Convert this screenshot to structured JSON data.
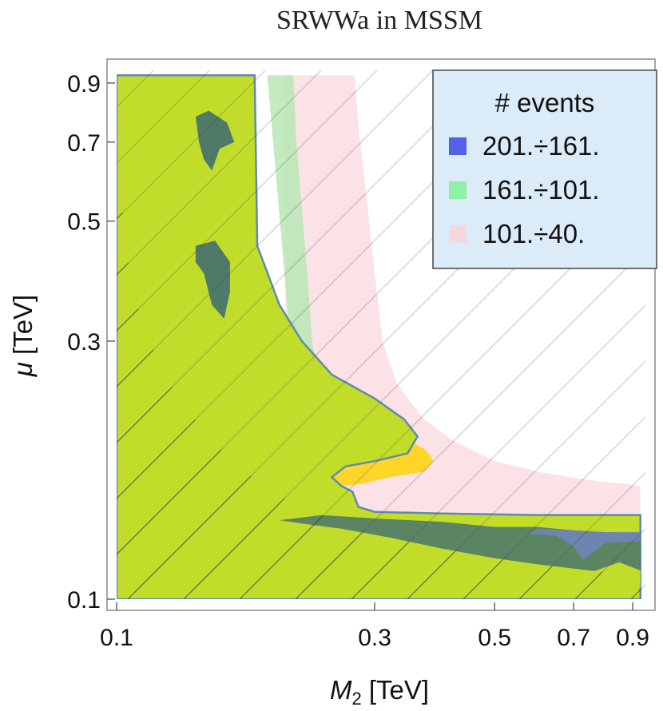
{
  "chart_data": {
    "type": "area",
    "title": "SRWWa in MSSM",
    "xlabel": {
      "var": "M",
      "sub": "2",
      "unit": " [TeV]"
    },
    "ylabel": {
      "var": "μ",
      "unit": " [TeV]"
    },
    "x_scale": "log",
    "y_scale": "log",
    "xlim": [
      0.1,
      0.95
    ],
    "ylim": [
      0.1,
      0.95
    ],
    "x_ticks": [
      {
        "value": 0.1,
        "label": "0.1"
      },
      {
        "value": 0.3,
        "label": "0.3"
      },
      {
        "value": 0.5,
        "label": "0.5"
      },
      {
        "value": 0.7,
        "label": "0.7"
      },
      {
        "value": 0.9,
        "label": "0.9"
      }
    ],
    "y_ticks": [
      {
        "value": 0.1,
        "label": "0.1"
      },
      {
        "value": 0.3,
        "label": "0.3"
      },
      {
        "value": 0.5,
        "label": "0.5"
      },
      {
        "value": 0.7,
        "label": "0.7"
      },
      {
        "value": 0.9,
        "label": "0.9"
      }
    ],
    "legend": {
      "title": "# events",
      "position": "top-right",
      "entries": [
        {
          "label": "201.÷161.",
          "color": "#5560e8"
        },
        {
          "label": "161.÷101.",
          "color": "#8ff0a8"
        },
        {
          "label": "101.÷40.",
          "color": "#f4d8de"
        }
      ]
    },
    "regions": [
      {
        "name": "excluded-region",
        "color": "#ff8000",
        "hatched": true,
        "points": [
          [
            0.1,
            0.1
          ],
          [
            0.1,
            0.66
          ],
          [
            0.105,
            0.42
          ],
          [
            0.11,
            0.34
          ],
          [
            0.12,
            0.27
          ],
          [
            0.13,
            0.235
          ],
          [
            0.145,
            0.205
          ],
          [
            0.165,
            0.178
          ],
          [
            0.19,
            0.16
          ],
          [
            0.22,
            0.147
          ],
          [
            0.26,
            0.138
          ],
          [
            0.32,
            0.13
          ],
          [
            0.4,
            0.124
          ],
          [
            0.5,
            0.119
          ],
          [
            0.6,
            0.116
          ],
          [
            0.75,
            0.113
          ],
          [
            0.93,
            0.111
          ],
          [
            0.93,
            0.1
          ]
        ]
      },
      {
        "name": "pink-band",
        "color": "#fadde2",
        "points": [
          [
            0.205,
            0.93
          ],
          [
            0.275,
            0.93
          ],
          [
            0.28,
            0.75
          ],
          [
            0.29,
            0.55
          ],
          [
            0.3,
            0.4
          ],
          [
            0.31,
            0.3
          ],
          [
            0.33,
            0.25
          ],
          [
            0.37,
            0.215
          ],
          [
            0.42,
            0.196
          ],
          [
            0.5,
            0.18
          ],
          [
            0.6,
            0.172
          ],
          [
            0.75,
            0.166
          ],
          [
            0.93,
            0.162
          ],
          [
            0.93,
            0.125
          ],
          [
            0.6,
            0.125
          ],
          [
            0.4,
            0.128
          ],
          [
            0.3,
            0.134
          ],
          [
            0.25,
            0.14
          ],
          [
            0.22,
            0.2
          ],
          [
            0.205,
            0.3
          ]
        ]
      },
      {
        "name": "light-green-band",
        "color": "#b9e8b4",
        "points": [
          [
            0.19,
            0.93
          ],
          [
            0.212,
            0.93
          ],
          [
            0.215,
            0.7
          ],
          [
            0.225,
            0.4
          ],
          [
            0.23,
            0.3
          ],
          [
            0.235,
            0.26
          ],
          [
            0.26,
            0.21
          ],
          [
            0.3,
            0.19
          ],
          [
            0.25,
            0.165
          ],
          [
            0.28,
            0.145
          ],
          [
            0.4,
            0.143
          ],
          [
            0.6,
            0.142
          ],
          [
            0.93,
            0.142
          ],
          [
            0.93,
            0.125
          ],
          [
            0.5,
            0.127
          ],
          [
            0.3,
            0.134
          ],
          [
            0.22,
            0.17
          ]
        ]
      },
      {
        "name": "yellow-region",
        "color": "#ffd52a",
        "points": [
          [
            0.1,
            0.93
          ],
          [
            0.127,
            0.93
          ],
          [
            0.12,
            0.8
          ],
          [
            0.118,
            0.62
          ],
          [
            0.122,
            0.5
          ],
          [
            0.13,
            0.4
          ],
          [
            0.145,
            0.3
          ],
          [
            0.165,
            0.27
          ],
          [
            0.2,
            0.25
          ],
          [
            0.23,
            0.23
          ],
          [
            0.26,
            0.215
          ],
          [
            0.3,
            0.205
          ],
          [
            0.35,
            0.196
          ],
          [
            0.375,
            0.188
          ],
          [
            0.385,
            0.18
          ],
          [
            0.37,
            0.172
          ],
          [
            0.32,
            0.168
          ],
          [
            0.28,
            0.163
          ],
          [
            0.255,
            0.162
          ],
          [
            0.25,
            0.158
          ],
          [
            0.27,
            0.152
          ],
          [
            0.26,
            0.146
          ],
          [
            0.22,
            0.15
          ],
          [
            0.18,
            0.16
          ],
          [
            0.15,
            0.17
          ],
          [
            0.12,
            0.25
          ],
          [
            0.105,
            0.45
          ]
        ]
      },
      {
        "name": "green-region",
        "color": "#c2dc2a",
        "points": [
          [
            0.1,
            0.93
          ],
          [
            0.115,
            0.93
          ],
          [
            0.112,
            0.75
          ],
          [
            0.12,
            0.55
          ],
          [
            0.125,
            0.42
          ],
          [
            0.13,
            0.36
          ],
          [
            0.135,
            0.32
          ],
          [
            0.14,
            0.28
          ],
          [
            0.15,
            0.25
          ],
          [
            0.17,
            0.23
          ],
          [
            0.2,
            0.215
          ],
          [
            0.23,
            0.2
          ],
          [
            0.235,
            0.18
          ],
          [
            0.225,
            0.165
          ],
          [
            0.23,
            0.152
          ],
          [
            0.26,
            0.143
          ],
          [
            0.3,
            0.14
          ],
          [
            0.4,
            0.138
          ],
          [
            0.55,
            0.137
          ],
          [
            0.7,
            0.136
          ],
          [
            0.93,
            0.136
          ],
          [
            0.93,
            0.104
          ],
          [
            0.6,
            0.106
          ],
          [
            0.5,
            0.112
          ],
          [
            0.42,
            0.118
          ],
          [
            0.35,
            0.124
          ],
          [
            0.28,
            0.132
          ],
          [
            0.22,
            0.145
          ],
          [
            0.18,
            0.16
          ],
          [
            0.14,
            0.19
          ],
          [
            0.12,
            0.23
          ],
          [
            0.107,
            0.32
          ],
          [
            0.1,
            0.5
          ]
        ]
      },
      {
        "name": "green-region-outline",
        "color": "#c2dc2a",
        "outline": "#5f8ab0",
        "points": [
          [
            0.1,
            0.93
          ],
          [
            0.18,
            0.93
          ],
          [
            0.182,
            0.45
          ],
          [
            0.2,
            0.35
          ],
          [
            0.22,
            0.3
          ],
          [
            0.25,
            0.26
          ],
          [
            0.3,
            0.235
          ],
          [
            0.34,
            0.215
          ],
          [
            0.36,
            0.2
          ],
          [
            0.345,
            0.186
          ],
          [
            0.3,
            0.18
          ],
          [
            0.265,
            0.176
          ],
          [
            0.25,
            0.168
          ],
          [
            0.26,
            0.162
          ],
          [
            0.273,
            0.158
          ],
          [
            0.28,
            0.148
          ],
          [
            0.3,
            0.145
          ],
          [
            0.4,
            0.144
          ],
          [
            0.6,
            0.143
          ],
          [
            0.93,
            0.143
          ],
          [
            0.93,
            0.1
          ],
          [
            0.1,
            0.1
          ]
        ]
      },
      {
        "name": "gray-band",
        "color": "#4f7a68",
        "points": [
          [
            0.2,
            0.14
          ],
          [
            0.24,
            0.143
          ],
          [
            0.3,
            0.141
          ],
          [
            0.4,
            0.139
          ],
          [
            0.5,
            0.136
          ],
          [
            0.6,
            0.136
          ],
          [
            0.7,
            0.134
          ],
          [
            0.8,
            0.133
          ],
          [
            0.93,
            0.131
          ],
          [
            0.93,
            0.11
          ],
          [
            0.75,
            0.113
          ],
          [
            0.6,
            0.116
          ],
          [
            0.5,
            0.119
          ],
          [
            0.4,
            0.124
          ],
          [
            0.32,
            0.13
          ],
          [
            0.26,
            0.135
          ],
          [
            0.22,
            0.138
          ]
        ]
      },
      {
        "name": "gray-blob-upper",
        "color": "#4f7a68",
        "points": [
          [
            0.14,
            0.78
          ],
          [
            0.148,
            0.8
          ],
          [
            0.16,
            0.76
          ],
          [
            0.165,
            0.7
          ],
          [
            0.155,
            0.68
          ],
          [
            0.15,
            0.62
          ],
          [
            0.145,
            0.65
          ],
          [
            0.142,
            0.7
          ]
        ]
      },
      {
        "name": "gray-blob-mid",
        "color": "#4f7a68",
        "points": [
          [
            0.14,
            0.45
          ],
          [
            0.152,
            0.46
          ],
          [
            0.162,
            0.42
          ],
          [
            0.162,
            0.37
          ],
          [
            0.158,
            0.33
          ],
          [
            0.15,
            0.35
          ],
          [
            0.145,
            0.4
          ],
          [
            0.14,
            0.42
          ]
        ]
      },
      {
        "name": "blue-patch",
        "color": "#6c86b0",
        "points": [
          [
            0.58,
            0.132
          ],
          [
            0.65,
            0.131
          ],
          [
            0.7,
            0.125
          ],
          [
            0.73,
            0.118
          ],
          [
            0.76,
            0.122
          ],
          [
            0.8,
            0.127
          ],
          [
            0.93,
            0.128
          ],
          [
            0.93,
            0.133
          ],
          [
            0.8,
            0.133
          ],
          [
            0.7,
            0.134
          ],
          [
            0.6,
            0.135
          ]
        ]
      },
      {
        "name": "lime-patch",
        "color": "#c2dc2a",
        "points": [
          [
            0.45,
            0.108
          ],
          [
            0.6,
            0.11
          ],
          [
            0.75,
            0.112
          ],
          [
            0.85,
            0.117
          ],
          [
            0.93,
            0.113
          ],
          [
            0.93,
            0.105
          ],
          [
            0.7,
            0.105
          ],
          [
            0.5,
            0.106
          ]
        ]
      }
    ],
    "grid": false
  }
}
